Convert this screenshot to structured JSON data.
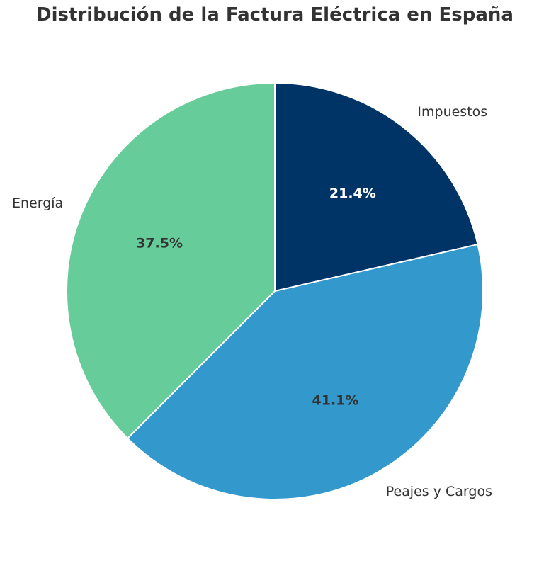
{
  "chart_data": {
    "type": "pie",
    "title": "Distribución de la Factura Eléctrica en España",
    "slices": [
      {
        "label": "Impuestos",
        "value": 21.4,
        "pct_label": "21.4%",
        "color": "#003366",
        "pct_text_color": "#ffffff"
      },
      {
        "label": "Peajes y Cargos",
        "value": 41.1,
        "pct_label": "41.1%",
        "color": "#3399cc",
        "pct_text_color": "#333333"
      },
      {
        "label": "Energía",
        "value": 37.5,
        "pct_label": "37.5%",
        "color": "#66cc99",
        "pct_text_color": "#333333"
      }
    ],
    "start_angle": "top",
    "direction": "clockwise",
    "legend": "none"
  }
}
